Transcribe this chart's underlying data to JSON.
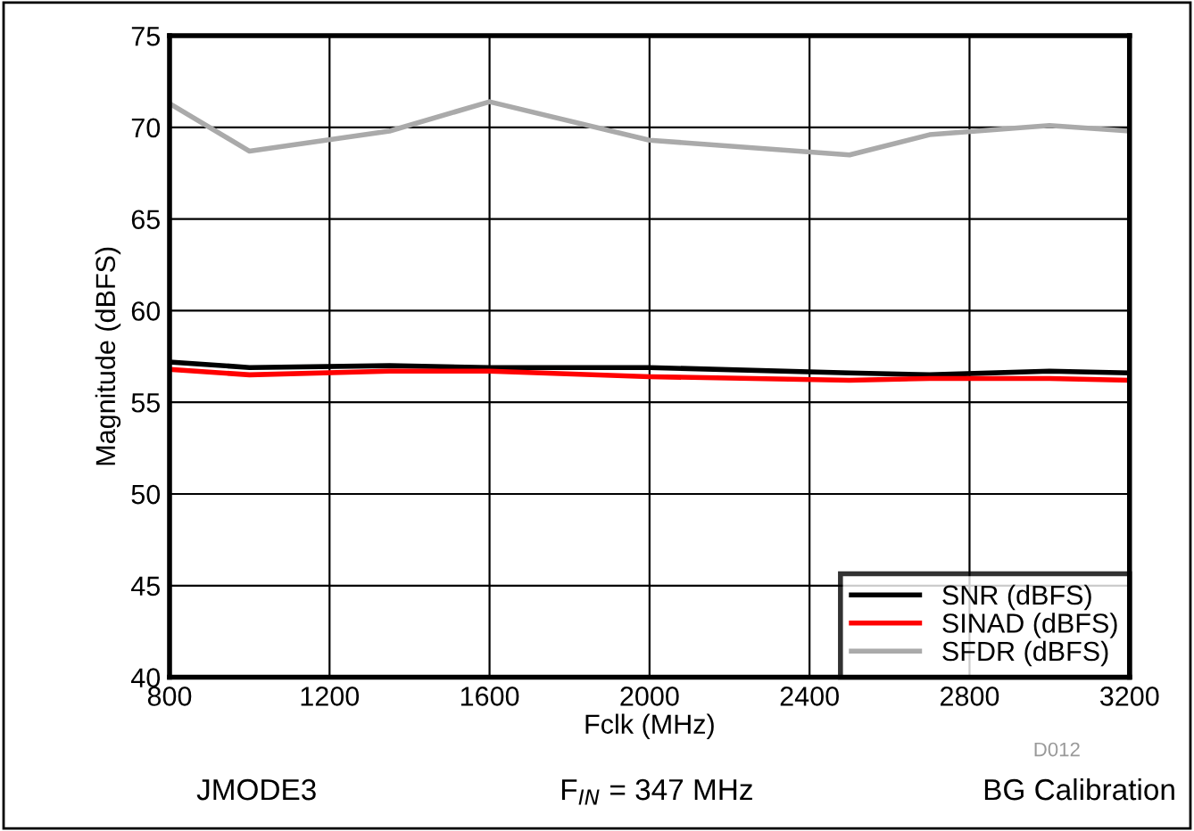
{
  "chart_data": {
    "type": "line",
    "xlabel": "Fclk (MHz)",
    "ylabel": "Magnitude (dBFS)",
    "x": [
      800,
      1000,
      1350,
      1600,
      2000,
      2500,
      2700,
      3000,
      3200
    ],
    "series": [
      {
        "name": "SNR (dBFS)",
        "color": "#000000",
        "values": [
          57.2,
          56.9,
          57.0,
          56.9,
          56.9,
          56.6,
          56.5,
          56.7,
          56.6
        ]
      },
      {
        "name": "SINAD (dBFS)",
        "color": "#ff0000",
        "values": [
          56.8,
          56.5,
          56.7,
          56.7,
          56.4,
          56.2,
          56.3,
          56.3,
          56.2
        ]
      },
      {
        "name": "SFDR (dBFS)",
        "color": "#aaaaaa",
        "values": [
          71.3,
          68.7,
          69.8,
          71.4,
          69.3,
          68.5,
          69.6,
          70.1,
          69.8
        ]
      }
    ],
    "xlim": [
      800,
      3200
    ],
    "xticks": [
      800,
      1200,
      1600,
      2000,
      2400,
      2800,
      3200
    ],
    "ylim": [
      40,
      75
    ],
    "yticks": [
      40,
      45,
      50,
      55,
      60,
      65,
      70,
      75
    ],
    "grid": true,
    "legend": "bottom right",
    "marker": "none",
    "line_style": "solid",
    "annotations": [
      "D012",
      "JMODE3",
      "F$_{IN}$ = 347 MHz",
      "BG Calibration"
    ]
  }
}
